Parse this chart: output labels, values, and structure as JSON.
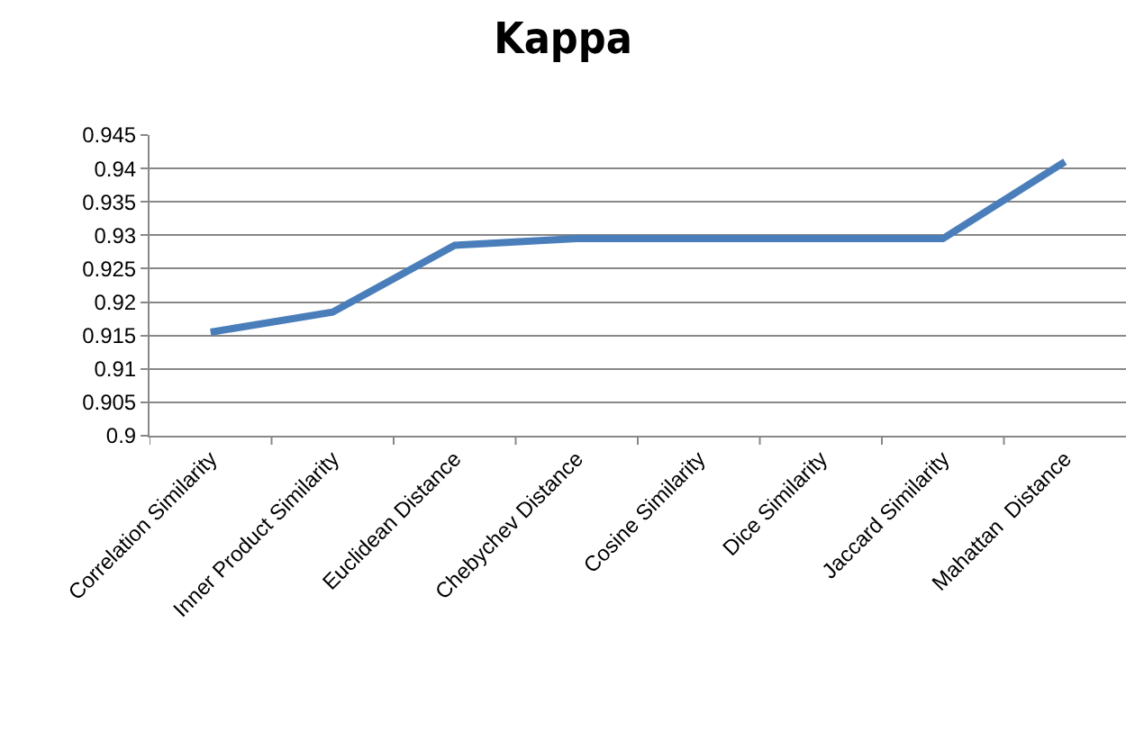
{
  "chart_data": {
    "type": "line",
    "title": "Kappa",
    "categories": [
      "Correlation Similarity",
      "Inner Product Similarity",
      "Euclidean Distance",
      "Chebychev Distance",
      "Cosine Similarity",
      "Dice Similarity",
      "Jaccard Similarity",
      "Mahattan  Distance"
    ],
    "series": [
      {
        "color": "#4a7ebb",
        "values": [
          0.9155,
          0.9185,
          0.9285,
          0.9295,
          0.9295,
          0.9295,
          0.9295,
          0.941
        ]
      }
    ],
    "ylim": [
      0.9,
      0.945
    ],
    "yticks": [
      0.9,
      0.905,
      0.91,
      0.915,
      0.92,
      0.925,
      0.93,
      0.935,
      0.94,
      0.945
    ],
    "grid": "y",
    "marker": "none",
    "line_style": "solid"
  }
}
